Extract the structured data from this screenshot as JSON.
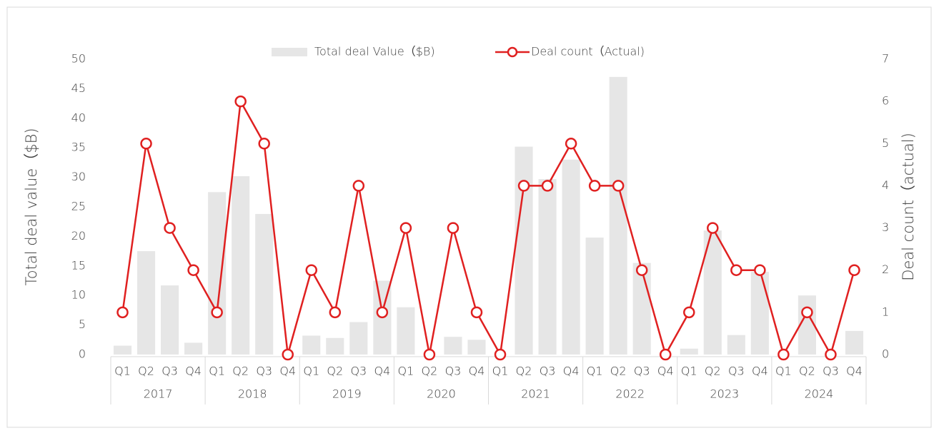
{
  "chart_data": {
    "type": "bar_line",
    "categories": [
      "Q1",
      "Q2",
      "Q3",
      "Q4",
      "Q1",
      "Q2",
      "Q3",
      "Q4",
      "Q1",
      "Q2",
      "Q3",
      "Q4",
      "Q1",
      "Q2",
      "Q3",
      "Q4",
      "Q1",
      "Q2",
      "Q3",
      "Q4",
      "Q1",
      "Q2",
      "Q3",
      "Q4",
      "Q1",
      "Q2",
      "Q3",
      "Q4",
      "Q1",
      "Q2",
      "Q3",
      "Q4"
    ],
    "category_groups": [
      "2017",
      "2018",
      "2019",
      "2020",
      "2021",
      "2022",
      "2023",
      "2024"
    ],
    "y_label": "Total deal value（$B)",
    "y2_label": "Deal count（actual)",
    "series": [
      {
        "name": "Total deal Value（$B)",
        "type": "bar",
        "color": "#e6e6e6",
        "values": [
          1.5,
          17.5,
          11.7,
          2,
          27.5,
          30.2,
          23.8,
          0,
          3.2,
          2.8,
          5.5,
          12.5,
          8,
          0,
          3,
          2.5,
          0,
          35.2,
          29.7,
          33,
          19.8,
          47,
          15.5,
          0,
          1,
          21,
          3.3,
          14,
          0,
          10,
          0,
          4
        ]
      },
      {
        "name": "Deal count（Actual)",
        "type": "line",
        "axis": "y2",
        "color": "#e02020",
        "values": [
          1,
          5,
          3,
          2,
          1,
          6,
          5,
          0,
          2,
          1,
          4,
          1,
          3,
          0,
          3,
          1,
          0,
          4,
          4,
          5,
          4,
          4,
          2,
          0,
          1,
          3,
          2,
          2,
          0,
          1,
          0,
          2
        ]
      }
    ],
    "ylim": [
      0,
      50
    ],
    "yticks": [
      0,
      5,
      10,
      15,
      20,
      25,
      30,
      35,
      40,
      45,
      50
    ],
    "y2lim": [
      0,
      7
    ],
    "y2ticks": [
      0,
      1,
      2,
      3,
      4,
      5,
      6,
      7
    ],
    "grid": false,
    "legend": "top"
  }
}
